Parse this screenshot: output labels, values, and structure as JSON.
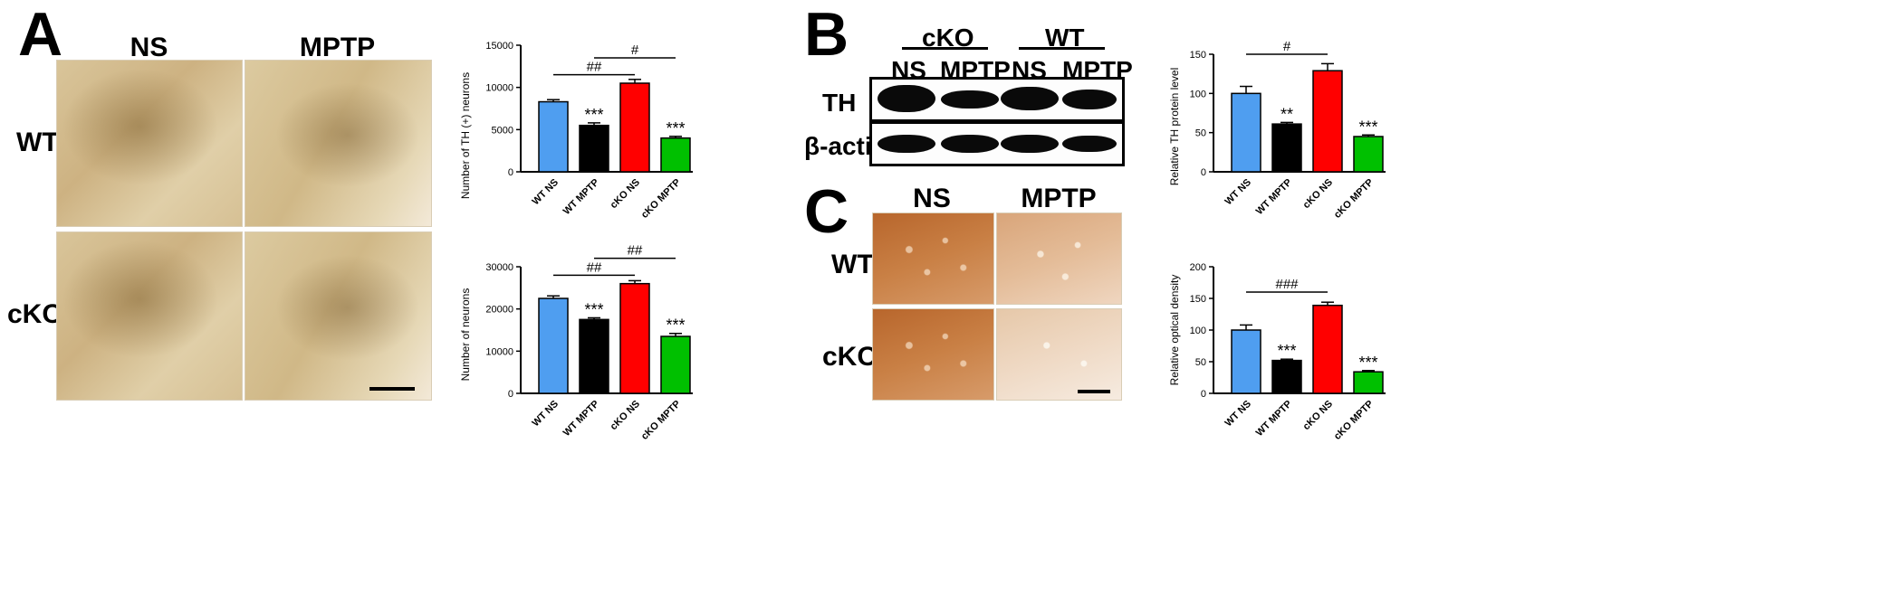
{
  "panels": {
    "A": "A",
    "B": "B",
    "C": "C"
  },
  "panel_a": {
    "col_headers": [
      "NS",
      "MPTP"
    ],
    "row_headers": [
      "WT",
      "cKO"
    ]
  },
  "panel_b": {
    "group_headers": [
      "cKO",
      "WT"
    ],
    "lane_labels": [
      "NS",
      "MPTP",
      "NS",
      "MPTP"
    ],
    "row_labels": [
      "TH",
      "β-actin"
    ],
    "th_band_intensity": [
      1.0,
      0.7,
      0.95,
      0.75
    ]
  },
  "panel_c": {
    "col_headers": [
      "NS",
      "MPTP"
    ],
    "row_headers": [
      "WT",
      "cKO"
    ]
  },
  "chart_data": [
    {
      "id": "th_neurons",
      "type": "bar",
      "ylabel": "Number of TH (+) neurons",
      "categories": [
        "WT NS",
        "WT MPTP",
        "cKO NS",
        "cKO MPTP"
      ],
      "values": [
        8300,
        5500,
        10500,
        4000
      ],
      "errors": [
        250,
        300,
        450,
        200
      ],
      "colors": [
        "#4f9ef0",
        "#000000",
        "#ff0000",
        "#00c000"
      ],
      "ylim": [
        0,
        15000
      ],
      "yticks": [
        0,
        5000,
        10000,
        15000
      ],
      "ytick_labels": [
        "0",
        "5000",
        "10000",
        "15000"
      ],
      "stars": [
        "",
        "***",
        "",
        "***"
      ],
      "brackets": [
        {
          "from": 0,
          "to": 2,
          "label": "##",
          "y": 11500
        },
        {
          "from": 1,
          "to": 3,
          "label": "#",
          "y": 13500
        }
      ]
    },
    {
      "id": "total_neurons",
      "type": "bar",
      "ylabel": "Number of neurons",
      "categories": [
        "WT NS",
        "WT MPTP",
        "cKO NS",
        "cKO MPTP"
      ],
      "values": [
        22500,
        17500,
        26000,
        13500
      ],
      "errors": [
        600,
        400,
        700,
        700
      ],
      "colors": [
        "#4f9ef0",
        "#000000",
        "#ff0000",
        "#00c000"
      ],
      "ylim": [
        0,
        30000
      ],
      "yticks": [
        0,
        10000,
        20000,
        30000
      ],
      "ytick_labels": [
        "0",
        "10000",
        "20000",
        "30000"
      ],
      "stars": [
        "",
        "***",
        "",
        "***"
      ],
      "brackets": [
        {
          "from": 0,
          "to": 2,
          "label": "##",
          "y": 28000
        },
        {
          "from": 1,
          "to": 3,
          "label": "##",
          "y": 32000
        }
      ]
    },
    {
      "id": "th_protein",
      "type": "bar",
      "ylabel": "Relative TH protein level",
      "categories": [
        "WT NS",
        "WT MPTP",
        "cKO NS",
        "cKO MPTP"
      ],
      "values": [
        100,
        61,
        129,
        45
      ],
      "errors": [
        9,
        2,
        9,
        2
      ],
      "colors": [
        "#4f9ef0",
        "#000000",
        "#ff0000",
        "#00c000"
      ],
      "ylim": [
        0,
        150
      ],
      "yticks": [
        0,
        50,
        100,
        150
      ],
      "ytick_labels": [
        "0",
        "50",
        "100",
        "150"
      ],
      "stars": [
        "",
        "**",
        "",
        "***"
      ],
      "brackets": [
        {
          "from": 0,
          "to": 2,
          "label": "#",
          "y": 150
        }
      ]
    },
    {
      "id": "optical_density",
      "type": "bar",
      "ylabel": "Relative optical density",
      "categories": [
        "WT NS",
        "WT MPTP",
        "cKO NS",
        "cKO MPTP"
      ],
      "values": [
        100,
        52,
        139,
        34
      ],
      "errors": [
        8,
        2,
        5,
        2
      ],
      "colors": [
        "#4f9ef0",
        "#000000",
        "#ff0000",
        "#00c000"
      ],
      "ylim": [
        0,
        200
      ],
      "yticks": [
        0,
        50,
        100,
        150,
        200
      ],
      "ytick_labels": [
        "0",
        "50",
        "100",
        "150",
        "200"
      ],
      "stars": [
        "",
        "***",
        "",
        "***"
      ],
      "brackets": [
        {
          "from": 0,
          "to": 2,
          "label": "###",
          "y": 160
        }
      ]
    }
  ]
}
